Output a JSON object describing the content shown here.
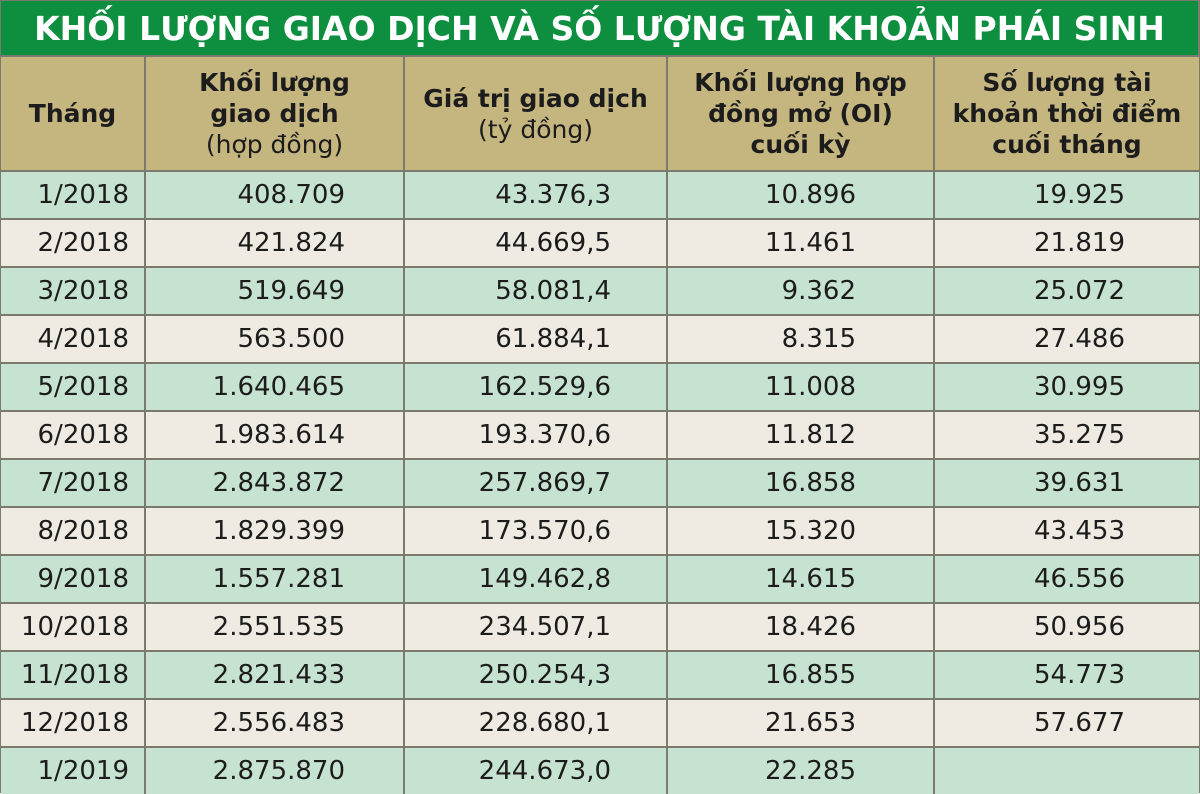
{
  "title": "KHỐI LƯỢNG GIAO DỊCH VÀ SỐ LƯỢNG TÀI KHOẢN PHÁI SINH",
  "colors": {
    "title_bg": "#0d8f3f",
    "header_bg": "#c5b680",
    "row_green": "#c6e2d0",
    "row_beige": "#efebe2",
    "border": "#7a7a6e"
  },
  "headers": {
    "month": [
      "Tháng"
    ],
    "volume": [
      "Khối lượng",
      "giao dịch"
    ],
    "volume_unit": "(hợp đồng)",
    "value": [
      "Giá trị giao dịch"
    ],
    "value_unit": "(tỷ đồng)",
    "open_interest": [
      "Khối lượng hợp",
      "đồng mở (OI)",
      "cuối kỳ"
    ],
    "accounts": [
      "Số lượng tài",
      "khoản thời điểm",
      "cuối tháng"
    ]
  },
  "chart_data": {
    "type": "table",
    "title": "KHỐI LƯỢNG GIAO DỊCH VÀ SỐ LƯỢNG TÀI KHOẢN PHÁI SINH",
    "columns": [
      "Tháng",
      "Khối lượng giao dịch (hợp đồng)",
      "Giá trị giao dịch (tỷ đồng)",
      "Khối lượng hợp đồng mở (OI) cuối kỳ",
      "Số lượng tài khoản thời điểm cuối tháng"
    ],
    "rows": [
      [
        "1/2018",
        "408.709",
        "43.376,3",
        "10.896",
        "19.925"
      ],
      [
        "2/2018",
        "421.824",
        "44.669,5",
        "11.461",
        "21.819"
      ],
      [
        "3/2018",
        "519.649",
        "58.081,4",
        "9.362",
        "25.072"
      ],
      [
        "4/2018",
        "563.500",
        "61.884,1",
        "8.315",
        "27.486"
      ],
      [
        "5/2018",
        "1.640.465",
        "162.529,6",
        "11.008",
        "30.995"
      ],
      [
        "6/2018",
        "1.983.614",
        "193.370,6",
        "11.812",
        "35.275"
      ],
      [
        "7/2018",
        "2.843.872",
        "257.869,7",
        "16.858",
        "39.631"
      ],
      [
        "8/2018",
        "1.829.399",
        "173.570,6",
        "15.320",
        "43.453"
      ],
      [
        "9/2018",
        "1.557.281",
        "149.462,8",
        "14.615",
        "46.556"
      ],
      [
        "10/2018",
        "2.551.535",
        "234.507,1",
        "18.426",
        "50.956"
      ],
      [
        "11/2018",
        "2.821.433",
        "250.254,3",
        "16.855",
        "54.773"
      ],
      [
        "12/2018",
        "2.556.483",
        "228.680,1",
        "21.653",
        "57.677"
      ],
      [
        "1/2019",
        "2.875.870",
        "244.673,0",
        "22.285",
        ""
      ]
    ]
  }
}
